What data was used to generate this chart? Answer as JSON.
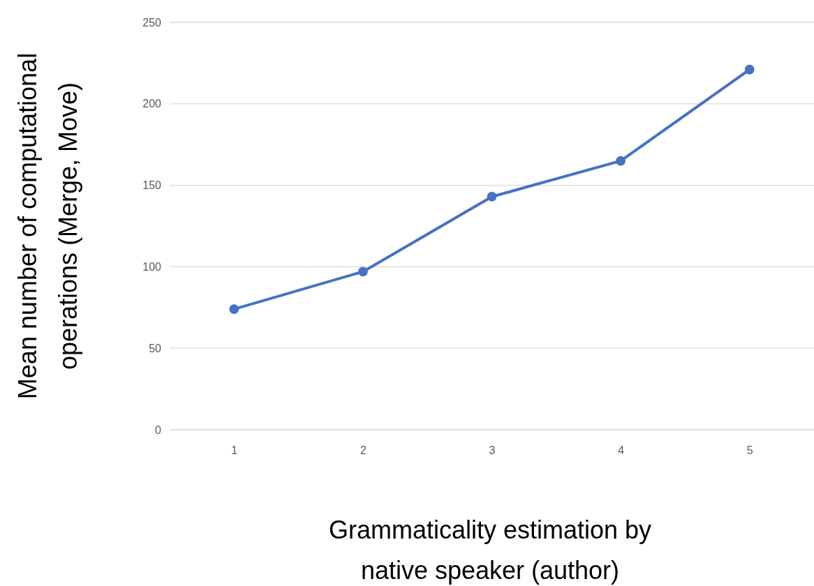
{
  "chart_data": {
    "type": "line",
    "xlabel": "Grammaticality estimation by native speaker (author)",
    "ylabel": "Mean number of computational operations (Merge, Move)",
    "categories": [
      "1",
      "2",
      "3",
      "4",
      "5"
    ],
    "series": [
      {
        "color": "#4472c4",
        "values": [
          74,
          97,
          143,
          165,
          221
        ]
      }
    ],
    "ylim": [
      0,
      250
    ],
    "yticks": [
      0,
      50,
      100,
      150,
      200,
      250
    ],
    "grid": "y",
    "marker": "circle",
    "line_style": "solid"
  }
}
